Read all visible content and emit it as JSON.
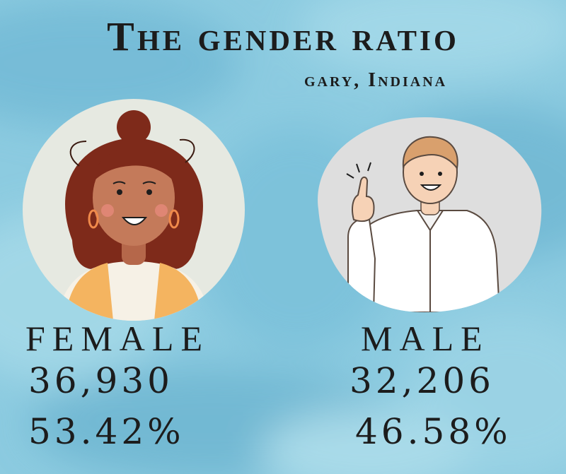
{
  "header": {
    "title": "The gender ratio",
    "subtitle": "gary, Indiana"
  },
  "female": {
    "label": "FEMALE",
    "count": "36,930",
    "percent": "53.42%",
    "share": 53.42
  },
  "male": {
    "label": "MALE",
    "count": "32,206",
    "percent": "46.58%",
    "share": 46.58
  },
  "colors": {
    "background": "#8ccbe0",
    "female_circle": "#e6e9e1",
    "male_blob": "#dedede",
    "hair_female": "#7e2a1a",
    "vest": "#f4b460",
    "hair_male": "#d9a06d"
  },
  "icons": {
    "female": "woman-avatar-icon",
    "male": "man-pointing-icon"
  }
}
